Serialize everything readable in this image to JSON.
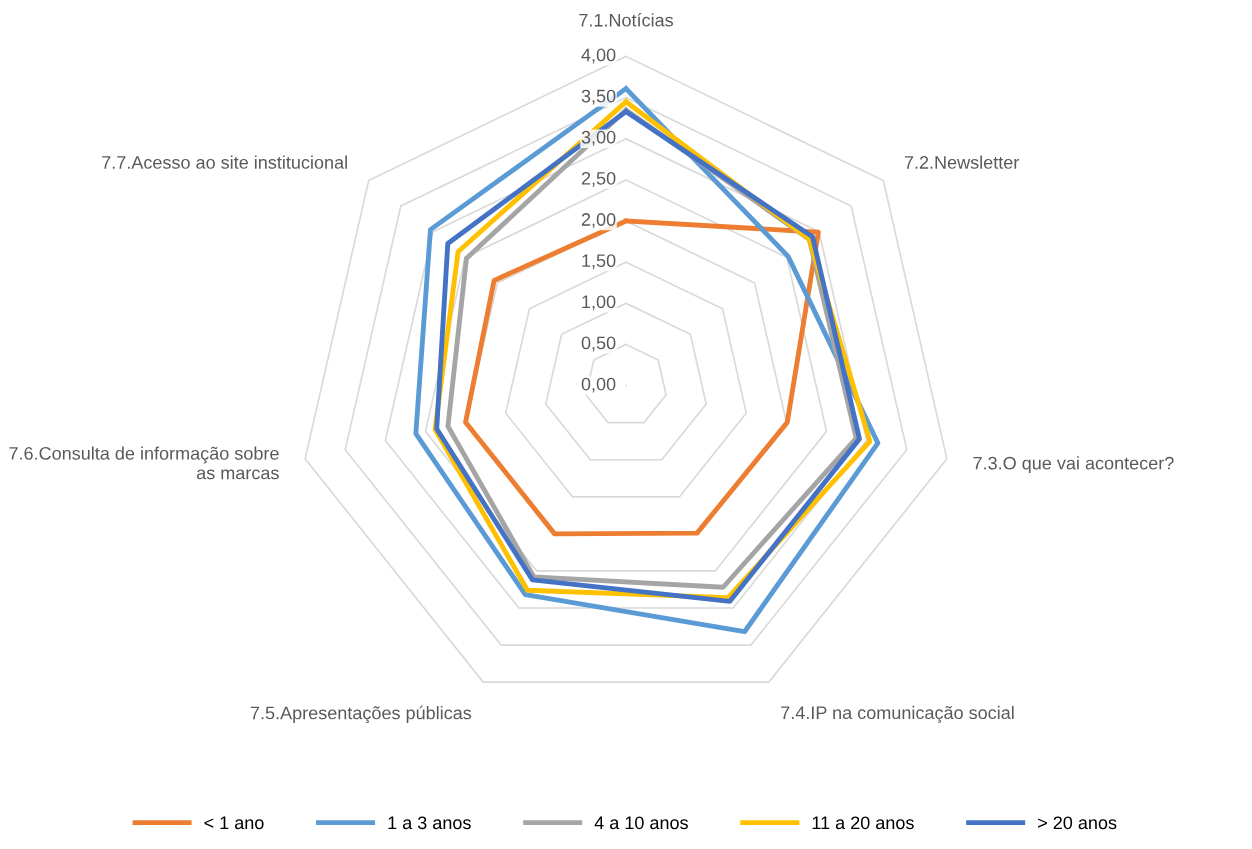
{
  "chart_data": {
    "type": "radar",
    "categories": [
      "7.1.Notícias",
      "7.2.Newsletter",
      "7.3.O que vai acontecer?",
      "7.4.IP na comunicação social",
      "7.5.Apresentações públicas",
      "7.6.Consulta de informação sobre as marcas",
      "7.7.Acesso ao site institucional"
    ],
    "series": [
      {
        "name": "< 1 ano",
        "color": "#ed7d31",
        "values": [
          2.0,
          2.99,
          2.01,
          1.99,
          2.0,
          2.0,
          2.05
        ]
      },
      {
        "name": "1 a 3 anos",
        "color": "#5b9bd5",
        "values": [
          3.61,
          2.52,
          3.14,
          3.32,
          2.82,
          2.62,
          3.04
        ]
      },
      {
        "name": "4 a 10 anos",
        "color": "#a5a5a5",
        "values": [
          3.35,
          2.85,
          2.87,
          2.72,
          2.58,
          2.22,
          2.48
        ]
      },
      {
        "name": "11 a 20 anos",
        "color": "#ffc000",
        "values": [
          3.45,
          2.85,
          3.04,
          2.86,
          2.76,
          2.38,
          2.61
        ]
      },
      {
        "name": "> 20 anos",
        "color": "#4472c4",
        "values": [
          3.33,
          2.9,
          2.91,
          2.91,
          2.62,
          2.36,
          2.77
        ]
      }
    ],
    "ylim": [
      0,
      4
    ],
    "yticks": [
      {
        "value": 0,
        "label": "0,00"
      },
      {
        "value": 0.5,
        "label": "0,50"
      },
      {
        "value": 1,
        "label": "1,00"
      },
      {
        "value": 1.5,
        "label": "1,50"
      },
      {
        "value": 2,
        "label": "2,00"
      },
      {
        "value": 2.5,
        "label": "2,50"
      },
      {
        "value": 3,
        "label": "3,00"
      },
      {
        "value": 3.5,
        "label": "3,50"
      },
      {
        "value": 4,
        "label": "4,00"
      }
    ],
    "grid": true,
    "legend": "bottom",
    "marker": "none",
    "line_style": "solid"
  }
}
